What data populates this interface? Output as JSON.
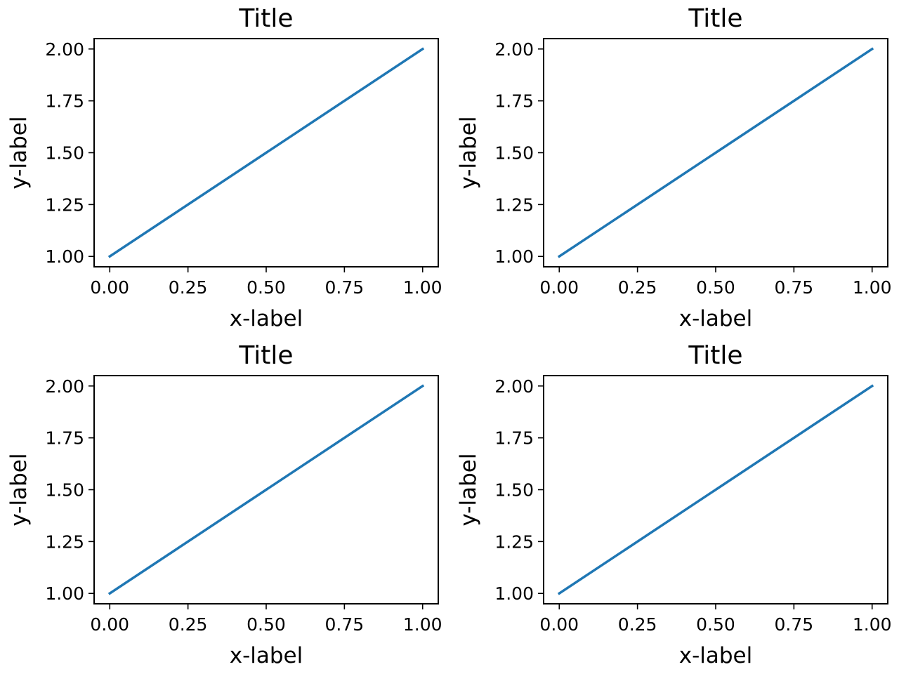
{
  "chart_data": [
    {
      "type": "line",
      "title": "Title",
      "xlabel": "x-label",
      "ylabel": "y-label",
      "xlim": [
        -0.05,
        1.05
      ],
      "ylim": [
        0.95,
        2.05
      ],
      "xticks": [
        "0.00",
        "0.25",
        "0.50",
        "0.75",
        "1.00"
      ],
      "yticks": [
        "1.00",
        "1.25",
        "1.50",
        "1.75",
        "2.00"
      ],
      "grid": false,
      "series": [
        {
          "x": [
            0,
            1
          ],
          "y": [
            1,
            2
          ],
          "color": "#1f77b4"
        }
      ]
    },
    {
      "type": "line",
      "title": "Title",
      "xlabel": "x-label",
      "ylabel": "y-label",
      "xlim": [
        -0.05,
        1.05
      ],
      "ylim": [
        0.95,
        2.05
      ],
      "xticks": [
        "0.00",
        "0.25",
        "0.50",
        "0.75",
        "1.00"
      ],
      "yticks": [
        "1.00",
        "1.25",
        "1.50",
        "1.75",
        "2.00"
      ],
      "grid": false,
      "series": [
        {
          "x": [
            0,
            1
          ],
          "y": [
            1,
            2
          ],
          "color": "#1f77b4"
        }
      ]
    },
    {
      "type": "line",
      "title": "Title",
      "xlabel": "x-label",
      "ylabel": "y-label",
      "xlim": [
        -0.05,
        1.05
      ],
      "ylim": [
        0.95,
        2.05
      ],
      "xticks": [
        "0.00",
        "0.25",
        "0.50",
        "0.75",
        "1.00"
      ],
      "yticks": [
        "1.00",
        "1.25",
        "1.50",
        "1.75",
        "2.00"
      ],
      "grid": false,
      "series": [
        {
          "x": [
            0,
            1
          ],
          "y": [
            1,
            2
          ],
          "color": "#1f77b4"
        }
      ]
    },
    {
      "type": "line",
      "title": "Title",
      "xlabel": "x-label",
      "ylabel": "y-label",
      "xlim": [
        -0.05,
        1.05
      ],
      "ylim": [
        0.95,
        2.05
      ],
      "xticks": [
        "0.00",
        "0.25",
        "0.50",
        "0.75",
        "1.00"
      ],
      "yticks": [
        "1.00",
        "1.25",
        "1.50",
        "1.75",
        "2.00"
      ],
      "grid": false,
      "series": [
        {
          "x": [
            0,
            1
          ],
          "y": [
            1,
            2
          ],
          "color": "#1f77b4"
        }
      ]
    }
  ]
}
